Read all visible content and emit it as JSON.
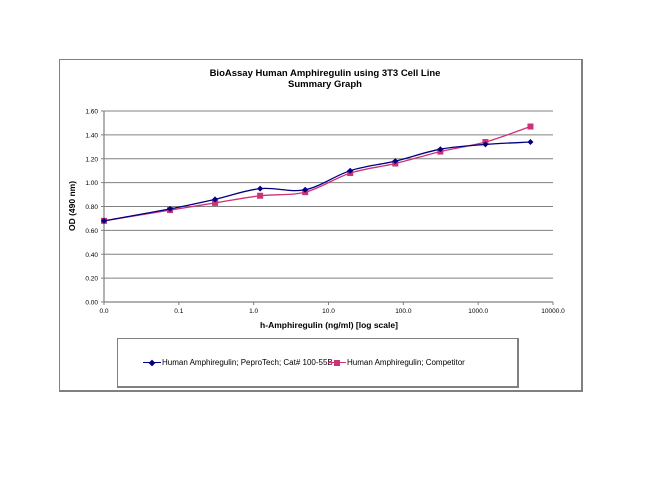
{
  "chart_data": {
    "type": "line",
    "title": "BioAssay Human Amphiregulin using 3T3 Cell Line",
    "subtitle": "Summary Graph",
    "xlabel": "h-Amphiregulin (ng/ml) [log scale]",
    "ylabel": "OD (490 nm)",
    "x_scale": "log",
    "x_tick_labels": [
      "0.0",
      "0.1",
      "1.0",
      "10.0",
      "100.0",
      "1000.0",
      "10000.0"
    ],
    "y_tick_labels": [
      "0.00",
      "0.20",
      "0.40",
      "0.60",
      "0.80",
      "1.00",
      "1.20",
      "1.40",
      "1.60"
    ],
    "xlim": [
      0.01,
      10000
    ],
    "ylim": [
      0,
      1.6
    ],
    "grid": "horizontal major gridlines",
    "legend_position": "bottom",
    "x": [
      0.01,
      0.0763,
      0.305,
      1.22,
      4.88,
      19.5,
      78.1,
      312.5,
      1250,
      5000
    ],
    "series": [
      {
        "name": "Human Amphiregulin; PeproTech; Cat# 100-55B",
        "color": "#000080",
        "marker": "diamond",
        "values": [
          0.68,
          0.78,
          0.86,
          0.95,
          0.94,
          1.1,
          1.18,
          1.28,
          1.32,
          1.34
        ]
      },
      {
        "name": "Human Amphiregulin; Competitor",
        "color": "#CC3377",
        "marker": "square",
        "values": [
          0.68,
          0.77,
          0.83,
          0.89,
          0.92,
          1.08,
          1.16,
          1.26,
          1.34,
          1.47
        ]
      }
    ]
  }
}
